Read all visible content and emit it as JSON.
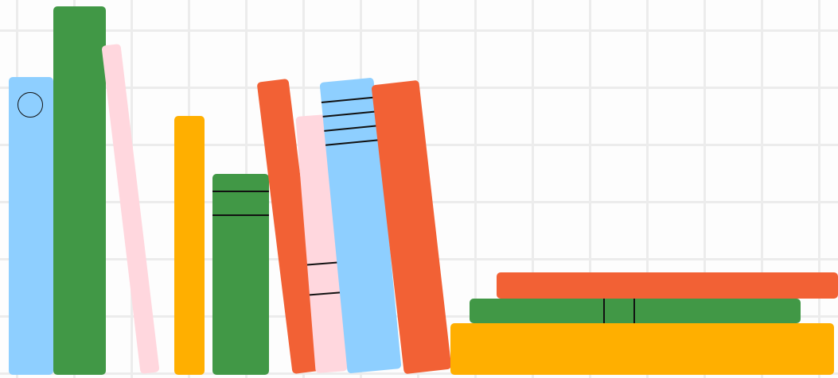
{
  "colors": {
    "background": "#fdfdfd",
    "grid": "#ececec",
    "blue": "#8ecfff",
    "green": "#419846",
    "pink": "#ffd7de",
    "yellow": "#ffaf00",
    "orange": "#f26135",
    "line": "#111111"
  },
  "books": [
    {
      "name": "book-blue-circle",
      "color": "blue",
      "detail": "circle-emblem"
    },
    {
      "name": "book-green-tall",
      "color": "green"
    },
    {
      "name": "book-pink-leaning",
      "color": "pink"
    },
    {
      "name": "book-yellow-thin",
      "color": "yellow"
    },
    {
      "name": "book-green-striped",
      "color": "green",
      "detail": "two-stripes"
    },
    {
      "name": "book-orange-leaning",
      "color": "orange"
    },
    {
      "name": "book-pink-striped",
      "color": "pink",
      "detail": "two-stripes"
    },
    {
      "name": "book-blue-striped",
      "color": "blue",
      "detail": "four-stripes"
    },
    {
      "name": "book-orange-wide",
      "color": "orange"
    },
    {
      "name": "book-yellow-stacked",
      "color": "yellow",
      "orientation": "horizontal"
    },
    {
      "name": "book-green-stacked",
      "color": "green",
      "orientation": "horizontal",
      "detail": "two-lines"
    },
    {
      "name": "book-orange-stacked",
      "color": "orange",
      "orientation": "horizontal"
    }
  ]
}
